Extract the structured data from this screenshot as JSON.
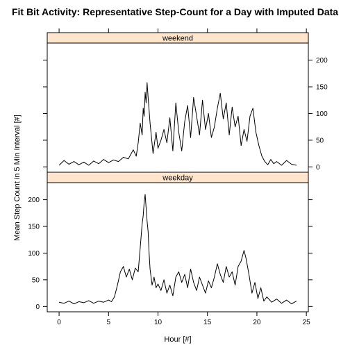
{
  "chart_data": {
    "type": "line",
    "title": "Fit Bit Activity:  Representative Step-Count for a Day with Imputed Data",
    "xlabel": "Hour [#]",
    "ylabel": "Mean Step Count in 5 Min Interval [#]",
    "xlim": [
      -1.2,
      25.2
    ],
    "ylim": [
      -10,
      232
    ],
    "x_ticks": [
      0,
      5,
      10,
      15,
      20,
      25
    ],
    "y_ticks": [
      0,
      50,
      100,
      150,
      200
    ],
    "x_tick_labels": [
      "0",
      "5",
      "10",
      "15",
      "20",
      "25"
    ],
    "y_tick_labels": [
      "0",
      "50",
      "100",
      "150",
      "200"
    ],
    "panels": [
      {
        "name": "weekend",
        "x": [
          0,
          0.5,
          1,
          1.5,
          2,
          2.5,
          3,
          3.5,
          4,
          4.5,
          5,
          5.5,
          6,
          6.5,
          7,
          7.5,
          7.8,
          8,
          8.2,
          8.4,
          8.5,
          8.6,
          8.7,
          8.8,
          8.9,
          9,
          9.2,
          9.5,
          9.8,
          10,
          10.3,
          10.6,
          10.9,
          11.2,
          11.5,
          11.8,
          12.1,
          12.4,
          12.7,
          13,
          13.3,
          13.6,
          13.9,
          14.2,
          14.5,
          14.8,
          15.1,
          15.4,
          15.7,
          16,
          16.3,
          16.6,
          16.9,
          17.2,
          17.5,
          17.8,
          18.1,
          18.4,
          18.7,
          19,
          19.3,
          19.6,
          19.9,
          20.2,
          20.5,
          20.8,
          21.1,
          21.4,
          21.7,
          22,
          22.5,
          23,
          23.5,
          24
        ],
        "y": [
          3,
          12,
          5,
          10,
          4,
          9,
          3,
          11,
          6,
          14,
          8,
          13,
          10,
          18,
          15,
          32,
          20,
          45,
          82,
          60,
          110,
          95,
          140,
          120,
          158,
          130,
          82,
          25,
          65,
          35,
          50,
          70,
          45,
          92,
          30,
          120,
          65,
          30,
          85,
          115,
          55,
          130,
          95,
          60,
          125,
          70,
          100,
          55,
          75,
          110,
          138,
          90,
          120,
          60,
          112,
          75,
          95,
          40,
          70,
          48,
          95,
          110,
          65,
          40,
          20,
          10,
          4,
          14,
          6,
          10,
          3,
          12,
          5,
          3
        ]
      },
      {
        "name": "weekday",
        "x": [
          0,
          0.5,
          1,
          1.5,
          2,
          2.5,
          3,
          3.5,
          4,
          4.5,
          5,
          5.3,
          5.6,
          5.9,
          6.2,
          6.5,
          6.8,
          7.1,
          7.4,
          7.7,
          8,
          8.2,
          8.4,
          8.5,
          8.6,
          8.7,
          8.8,
          8.9,
          9,
          9.1,
          9.2,
          9.4,
          9.6,
          9.8,
          10,
          10.3,
          10.6,
          10.9,
          11.2,
          11.5,
          11.8,
          12.1,
          12.4,
          12.7,
          13,
          13.3,
          13.6,
          13.9,
          14.2,
          14.5,
          14.8,
          15.1,
          15.4,
          15.7,
          16,
          16.3,
          16.6,
          16.9,
          17.2,
          17.5,
          17.8,
          18.1,
          18.4,
          18.7,
          18.9,
          19.2,
          19.5,
          19.8,
          20.1,
          20.4,
          20.7,
          21,
          21.5,
          22,
          22.5,
          23,
          23.5,
          24
        ],
        "y": [
          8,
          6,
          10,
          5,
          9,
          7,
          11,
          6,
          10,
          8,
          12,
          9,
          18,
          40,
          65,
          75,
          55,
          70,
          50,
          72,
          65,
          110,
          155,
          170,
          195,
          210,
          185,
          160,
          140,
          100,
          70,
          40,
          55,
          35,
          42,
          30,
          50,
          25,
          40,
          20,
          55,
          65,
          45,
          60,
          35,
          70,
          45,
          30,
          55,
          40,
          25,
          48,
          35,
          55,
          80,
          60,
          45,
          75,
          55,
          65,
          40,
          75,
          85,
          105,
          90,
          60,
          25,
          45,
          15,
          35,
          10,
          18,
          8,
          14,
          6,
          12,
          5,
          10
        ]
      }
    ]
  }
}
